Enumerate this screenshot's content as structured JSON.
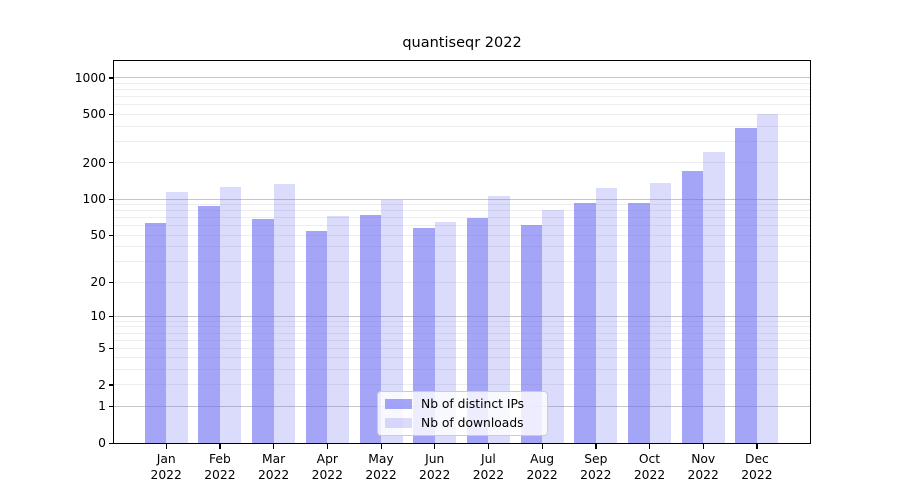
{
  "title": "quantiseqr 2022",
  "legend": {
    "items": [
      {
        "label": "Nb of distinct IPs"
      },
      {
        "label": "Nb of downloads"
      }
    ]
  },
  "y_axis": {
    "ticks": [
      {
        "label": "1000",
        "value": 1000
      },
      {
        "label": "500",
        "value": 500
      },
      {
        "label": "200",
        "value": 200
      },
      {
        "label": "100",
        "value": 100
      },
      {
        "label": "50",
        "value": 50
      },
      {
        "label": "20",
        "value": 20
      },
      {
        "label": "10",
        "value": 10
      },
      {
        "label": "5",
        "value": 5
      },
      {
        "label": "2",
        "value": 2
      },
      {
        "label": "1",
        "value": 1
      },
      {
        "label": "0",
        "value": 0
      }
    ],
    "major_gridlines": [
      1,
      10,
      100,
      1000
    ],
    "minor_gridlines": [
      2,
      3,
      4,
      5,
      6,
      7,
      8,
      9,
      20,
      30,
      40,
      50,
      60,
      70,
      80,
      90,
      200,
      300,
      400,
      500,
      600,
      700,
      800,
      900
    ]
  },
  "x_axis": {
    "months": [
      "Jan",
      "Feb",
      "Mar",
      "Apr",
      "May",
      "Jun",
      "Jul",
      "Aug",
      "Sep",
      "Oct",
      "Nov",
      "Dec"
    ],
    "year": "2022"
  },
  "chart_data": {
    "type": "bar",
    "title": "quantiseqr 2022",
    "scale": "log10(value+1)",
    "ylim": [
      0,
      1400
    ],
    "grid": "horizontal major+minor, log decades",
    "legend_position": "lower center",
    "categories": [
      "Jan 2022",
      "Feb 2022",
      "Mar 2022",
      "Apr 2022",
      "May 2022",
      "Jun 2022",
      "Jul 2022",
      "Aug 2022",
      "Sep 2022",
      "Oct 2022",
      "Nov 2022",
      "Dec 2022"
    ],
    "series": [
      {
        "name": "Nb of distinct IPs",
        "color": "rgba(110,110,242,0.62)",
        "values": [
          63,
          88,
          68,
          54,
          74,
          58,
          69,
          61,
          93,
          92,
          171,
          390
        ]
      },
      {
        "name": "Nb of downloads",
        "color": "rgba(110,110,242,0.25)",
        "values": [
          115,
          126,
          133,
          73,
          99,
          65,
          107,
          81,
          123,
          137,
          245,
          505
        ]
      }
    ]
  }
}
